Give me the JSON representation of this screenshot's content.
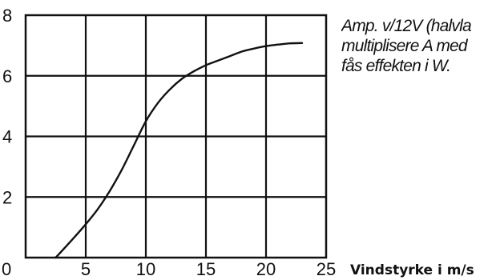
{
  "chart_data": {
    "type": "line",
    "title": "",
    "xlabel": "Vindstyrke i m/s",
    "ylabel": "",
    "xlim": [
      0,
      25
    ],
    "ylim": [
      0,
      8
    ],
    "grid": true,
    "x_ticks": [
      "0",
      "5",
      "10",
      "15",
      "20",
      "25"
    ],
    "y_ticks": [
      "2",
      "4",
      "6",
      "8"
    ],
    "series": [
      {
        "x": [
          2.5,
          4,
          5,
          6,
          7,
          8,
          9,
          10,
          11,
          12,
          13,
          14,
          15,
          16,
          17,
          18,
          19,
          20,
          21,
          22,
          23
        ],
        "values": [
          0,
          0.65,
          1.1,
          1.6,
          2.2,
          2.9,
          3.7,
          4.5,
          5.1,
          5.55,
          5.9,
          6.15,
          6.35,
          6.5,
          6.65,
          6.8,
          6.9,
          6.98,
          7.03,
          7.07,
          7.08
        ]
      }
    ],
    "annotation": [
      "Amp. v/12V (halvla",
      "multiplisere A med",
      "fås effekten i W."
    ]
  }
}
